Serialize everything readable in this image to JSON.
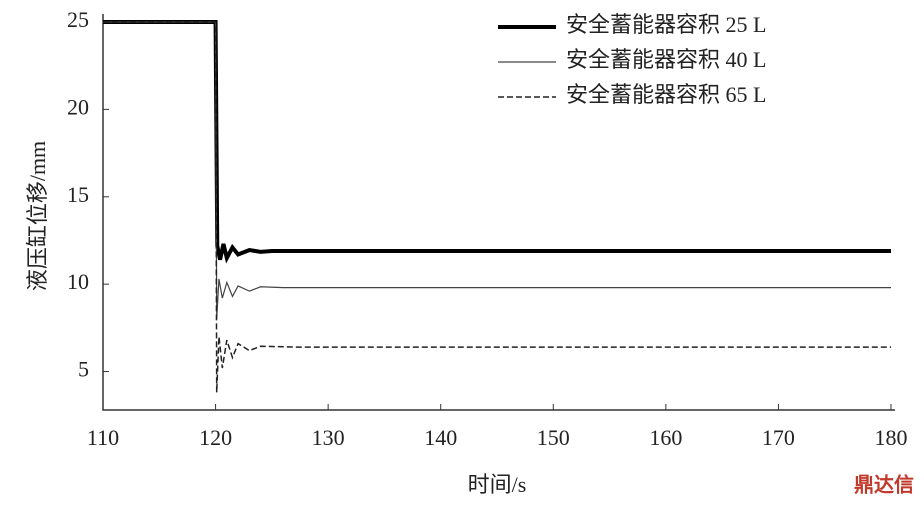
{
  "chart_data": {
    "type": "line",
    "xlabel": "时间/s",
    "ylabel": "液压缸位移/mm",
    "xlim": [
      110,
      180
    ],
    "xticks": [
      110,
      120,
      130,
      140,
      150,
      160,
      170,
      180
    ],
    "ylim": [
      2.8,
      25
    ],
    "yticks": [
      5,
      10,
      15,
      20,
      25
    ],
    "grid": false,
    "legend": "upper right",
    "watermark": "鼎达信",
    "series": [
      {
        "name": "安全蓄能器容积 25 L",
        "color": "#000000",
        "line_width": 4,
        "line_style": "solid",
        "x": [
          110,
          120,
          120.15,
          120.4,
          120.7,
          121,
          121.5,
          122,
          123,
          124,
          125,
          180
        ],
        "values": [
          25,
          25,
          12.2,
          11.4,
          12.3,
          11.5,
          12.1,
          11.7,
          11.95,
          11.85,
          11.9,
          11.9
        ]
      },
      {
        "name": "安全蓄能器容积 40 L",
        "color": "#444444",
        "line_width": 1.2,
        "line_style": "solid",
        "x": [
          110,
          120,
          120.1,
          120.3,
          120.6,
          121,
          121.5,
          122,
          123,
          124,
          126,
          180
        ],
        "values": [
          25,
          25,
          8,
          10.3,
          9.2,
          10.1,
          9.3,
          9.9,
          9.6,
          9.85,
          9.8,
          9.8
        ]
      },
      {
        "name": "安全蓄能器容积 65 L",
        "color": "#222222",
        "line_width": 1.5,
        "line_style": "dashed",
        "x": [
          110,
          120,
          120.1,
          120.3,
          120.6,
          121,
          121.5,
          122,
          123,
          124,
          127,
          180
        ],
        "values": [
          25,
          25,
          3.8,
          7,
          5.2,
          6.8,
          5.8,
          6.6,
          6.2,
          6.45,
          6.4,
          6.4
        ]
      }
    ]
  }
}
